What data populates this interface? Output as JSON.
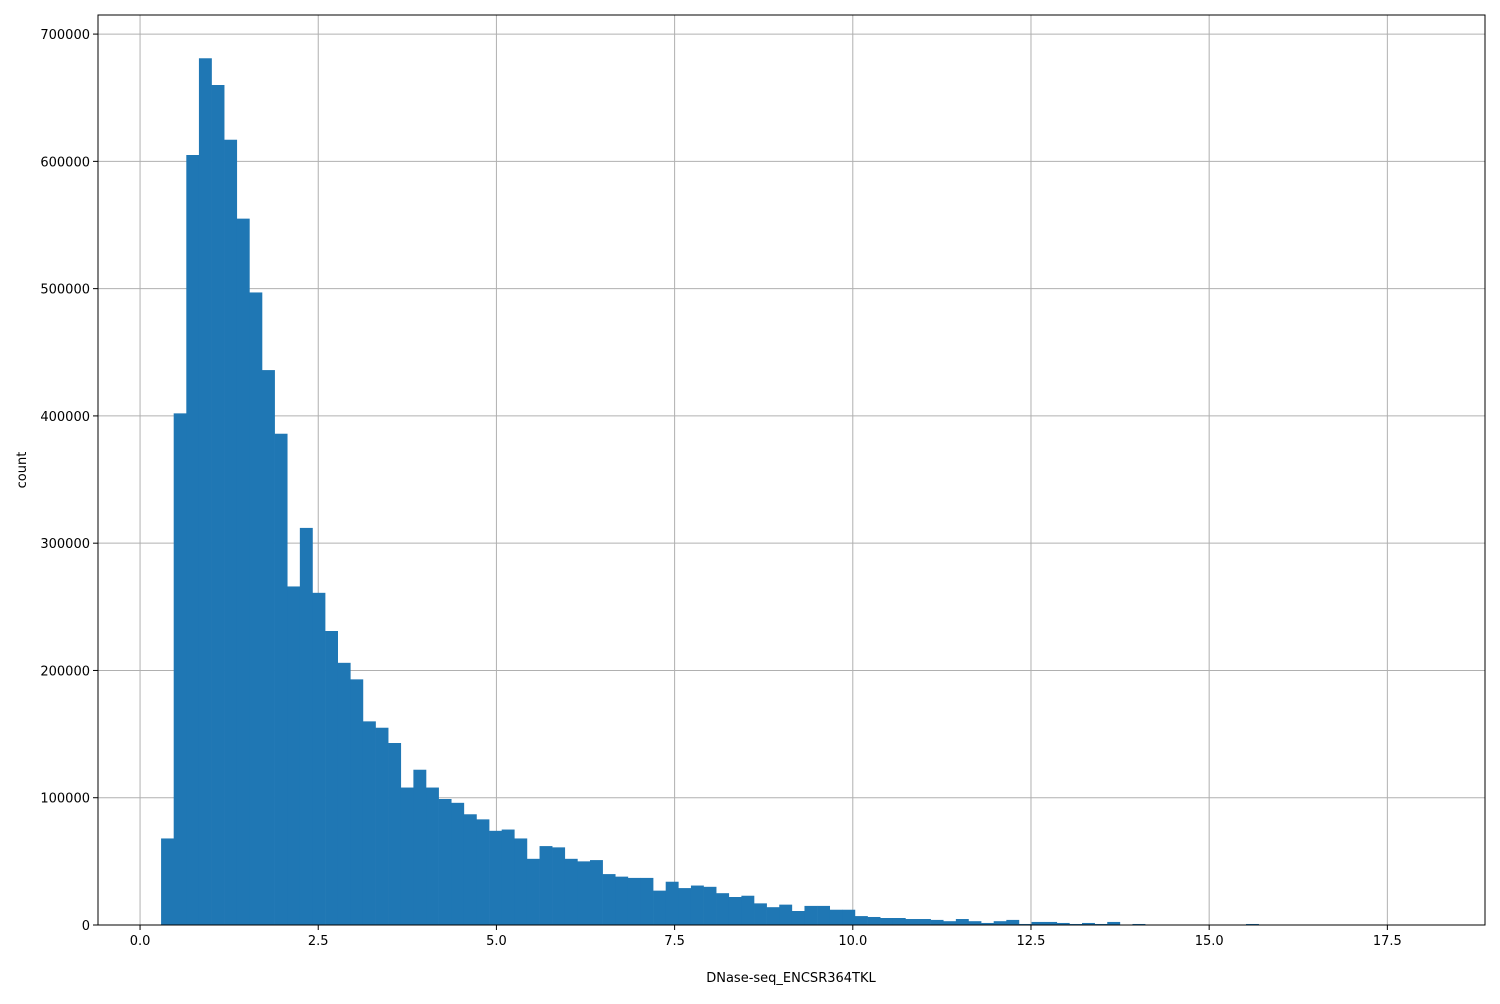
{
  "chart_data": {
    "type": "bar",
    "subtype": "histogram",
    "title": "",
    "xlabel": "DNase-seq_ENCSR364TKL",
    "ylabel": "count",
    "xlim": [
      -0.59,
      18.87
    ],
    "ylim": [
      0,
      715000
    ],
    "grid": true,
    "bar_color": "#1f77b4",
    "grid_color": "#b0b0b0",
    "bin_start": 0.295,
    "bin_width": 0.177,
    "xticks": [
      0.0,
      2.5,
      5.0,
      7.5,
      10.0,
      12.5,
      15.0,
      17.5
    ],
    "xtick_labels": [
      "0.0",
      "2.5",
      "5.0",
      "7.5",
      "10.0",
      "12.5",
      "15.0",
      "17.5"
    ],
    "yticks": [
      0,
      100000,
      200000,
      300000,
      400000,
      500000,
      600000,
      700000
    ],
    "ytick_labels": [
      "0",
      "100000",
      "200000",
      "300000",
      "400000",
      "500000",
      "600000",
      "700000"
    ],
    "values": [
      68000,
      402000,
      605000,
      681000,
      660000,
      617000,
      555000,
      497000,
      436000,
      386000,
      266000,
      312000,
      261000,
      231000,
      206000,
      193000,
      160000,
      155000,
      143000,
      108000,
      122000,
      108000,
      99000,
      96000,
      87000,
      83000,
      74000,
      75000,
      68000,
      52000,
      62000,
      61000,
      52000,
      50000,
      51000,
      40000,
      38000,
      37000,
      37000,
      27000,
      34000,
      29000,
      31000,
      30000,
      25000,
      22000,
      23000,
      17000,
      14000,
      16000,
      11000,
      15000,
      15000,
      12000,
      12000,
      7000,
      6300,
      5500,
      5500,
      4700,
      4700,
      4000,
      3000,
      4700,
      3000,
      1600,
      3000,
      4000,
      800,
      2400,
      2400,
      1600,
      800,
      1600,
      800,
      2400,
      0,
      800,
      0,
      0,
      0,
      0,
      0,
      0,
      0,
      0,
      800,
      0,
      0,
      0,
      0,
      0,
      0,
      0,
      0,
      0,
      0,
      0,
      0,
      0
    ]
  }
}
